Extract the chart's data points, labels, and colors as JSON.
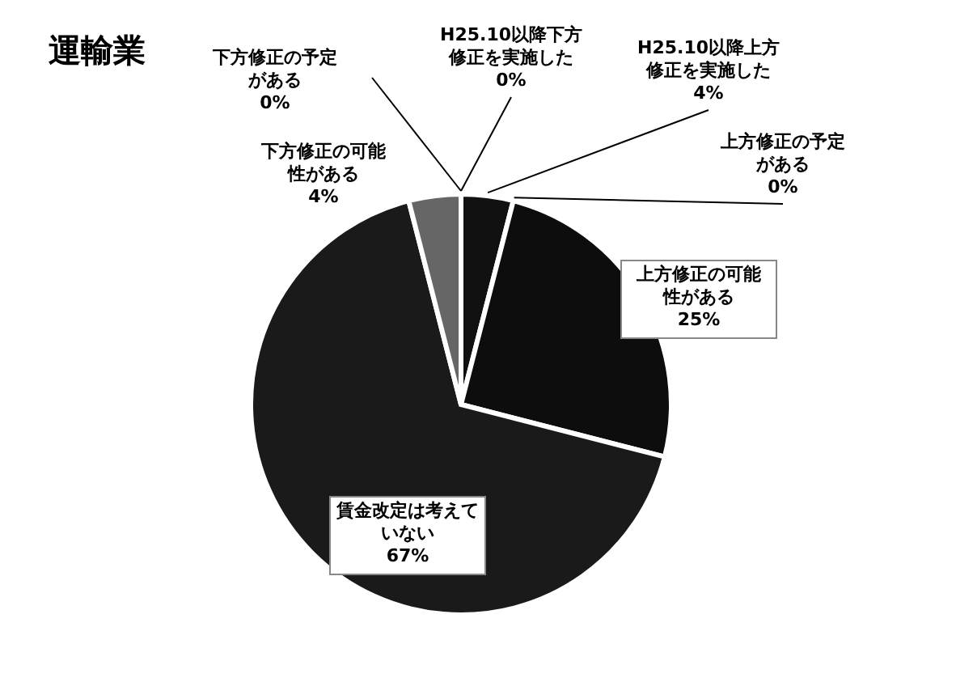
{
  "chart_data": {
    "type": "pie",
    "title": "運輸業",
    "categories": [
      "H25.10以降上方修正を実施した",
      "上方修正の予定がある",
      "上方修正の可能性がある",
      "賃金改定は考えていない",
      "下方修正の可能性がある",
      "下方修正の予定がある",
      "H25.10以降下方修正を実施した"
    ],
    "values": [
      4,
      0,
      25,
      67,
      4,
      0,
      0
    ],
    "value_labels": [
      "4%",
      "0%",
      "25%",
      "67%",
      "4%",
      "0%",
      "0%"
    ],
    "colors": [
      "#111111",
      "#cccccc",
      "#0d0d0d",
      "#1a1a1a",
      "#666666",
      "#999999",
      "#444444"
    ]
  }
}
